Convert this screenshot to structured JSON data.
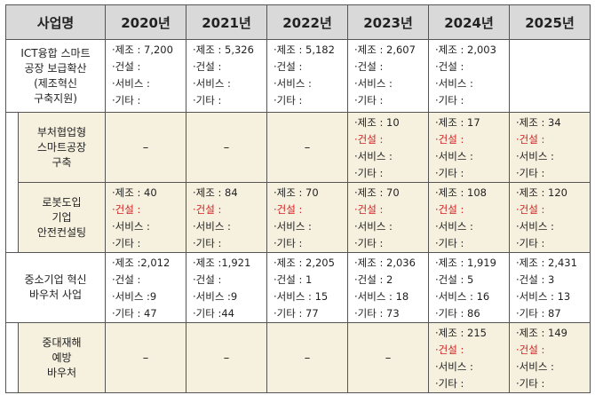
{
  "header": {
    "col_program": "사업명",
    "years": [
      "2020년",
      "2021년",
      "2022년",
      "2023년",
      "2024년",
      "2025년"
    ]
  },
  "rows": [
    {
      "name": [
        "ICT융합 스마트",
        "공장 보급확산",
        "(제조혁신",
        "구축지원)"
      ],
      "cells": [
        [
          {
            "t": "·제조 : 7,200",
            "r": false
          },
          {
            "t": "·건설 :",
            "r": false
          },
          {
            "t": "·서비스 :",
            "r": false
          },
          {
            "t": "·기타 :",
            "r": false
          }
        ],
        [
          {
            "t": "·제조 : 5,326",
            "r": false
          },
          {
            "t": "·건설 :",
            "r": false
          },
          {
            "t": "·서비스 :",
            "r": false
          },
          {
            "t": "·기타 :",
            "r": false
          }
        ],
        [
          {
            "t": "·제조 : 5,182",
            "r": false
          },
          {
            "t": "·건설 :",
            "r": false
          },
          {
            "t": "·서비스 :",
            "r": false
          },
          {
            "t": "·기타 :",
            "r": false
          }
        ],
        [
          {
            "t": "·제조 : 2,607",
            "r": false
          },
          {
            "t": "·건설 :",
            "r": false
          },
          {
            "t": "·서비스 :",
            "r": false
          },
          {
            "t": "·기타 :",
            "r": false
          }
        ],
        [
          {
            "t": "·제조 : 2,003",
            "r": false
          },
          {
            "t": "·건설 :",
            "r": false
          },
          {
            "t": "·서비스 :",
            "r": false
          },
          {
            "t": "·기타 :",
            "r": false
          }
        ],
        []
      ]
    },
    {
      "name": [
        "부처협업형",
        "스마트공장",
        "구축"
      ],
      "cells": [
        "–",
        "–",
        "–",
        [
          {
            "t": "·제조 :  10",
            "r": false
          },
          {
            "t": "·건설 :",
            "r": true
          },
          {
            "t": "·서비스 :",
            "r": false
          },
          {
            "t": "·기타 :",
            "r": false
          }
        ],
        [
          {
            "t": "·제조 :  17",
            "r": false
          },
          {
            "t": "·건설 :",
            "r": true
          },
          {
            "t": "·서비스 :",
            "r": false
          },
          {
            "t": "·기타 :",
            "r": false
          }
        ],
        [
          {
            "t": "·제조 :  34",
            "r": false
          },
          {
            "t": "·건설 :",
            "r": true
          },
          {
            "t": "·서비스 :",
            "r": false
          },
          {
            "t": "·기타 :",
            "r": false
          }
        ]
      ]
    },
    {
      "name": [
        "로봇도입",
        "기업",
        "안전컨설팅"
      ],
      "cells": [
        [
          {
            "t": "·제조 : 40",
            "r": false
          },
          {
            "t": "·건설 :",
            "r": true
          },
          {
            "t": "·서비스 :",
            "r": false
          },
          {
            "t": "·기타 :",
            "r": false
          }
        ],
        [
          {
            "t": "·제조 : 84",
            "r": false
          },
          {
            "t": "·건설 :",
            "r": true
          },
          {
            "t": "·서비스 :",
            "r": false
          },
          {
            "t": "·기타 :",
            "r": false
          }
        ],
        [
          {
            "t": "·제조 : 70",
            "r": false
          },
          {
            "t": "·건설 :",
            "r": true
          },
          {
            "t": "·서비스 :",
            "r": false
          },
          {
            "t": "·기타 :",
            "r": false
          }
        ],
        [
          {
            "t": "·제조 : 70",
            "r": false
          },
          {
            "t": "·건설 :",
            "r": true
          },
          {
            "t": "·서비스 :",
            "r": false
          },
          {
            "t": "·기타 :",
            "r": false
          }
        ],
        [
          {
            "t": "·제조 : 108",
            "r": false
          },
          {
            "t": "·건설 :",
            "r": true
          },
          {
            "t": "·서비스 :",
            "r": false
          },
          {
            "t": "·기타 :",
            "r": false
          }
        ],
        [
          {
            "t": "·제조 : 120",
            "r": false
          },
          {
            "t": "·건설 :",
            "r": true
          },
          {
            "t": "·서비스 :",
            "r": false
          },
          {
            "t": "·기타 :",
            "r": false
          }
        ]
      ]
    },
    {
      "name": [
        "중소기업 혁신",
        "바우처 사업"
      ],
      "cells": [
        [
          {
            "t": "·제조 :2,012",
            "r": false
          },
          {
            "t": "·건설 :",
            "r": false
          },
          {
            "t": "·서비스 :9",
            "r": false
          },
          {
            "t": "·기타 : 47",
            "r": false
          }
        ],
        [
          {
            "t": "·제조 :1,921",
            "r": false
          },
          {
            "t": "·건설 :",
            "r": false
          },
          {
            "t": "·서비스 :9",
            "r": false
          },
          {
            "t": "·기타 :44",
            "r": false
          }
        ],
        [
          {
            "t": "·제조 : 2,205",
            "r": false
          },
          {
            "t": "·건설 : 1",
            "r": false
          },
          {
            "t": "·서비스 : 15",
            "r": false
          },
          {
            "t": "·기타 : 77",
            "r": false
          }
        ],
        [
          {
            "t": "·제조 : 2,036",
            "r": false
          },
          {
            "t": "·건설 : 2",
            "r": false
          },
          {
            "t": "·서비스 : 18",
            "r": false
          },
          {
            "t": "·기타 : 73",
            "r": false
          }
        ],
        [
          {
            "t": "·제조 : 1,919",
            "r": false
          },
          {
            "t": "·건설 : 5",
            "r": false
          },
          {
            "t": "·서비스 :  16",
            "r": false
          },
          {
            "t": "·기타 : 86",
            "r": false
          }
        ],
        [
          {
            "t": "·제조 : 2,431",
            "r": false
          },
          {
            "t": "·건설 : 3",
            "r": false
          },
          {
            "t": "·서비스 : 13",
            "r": false
          },
          {
            "t": "·기타 : 87",
            "r": false
          }
        ]
      ]
    },
    {
      "name": [
        "중대재해",
        "예방",
        "바우처"
      ],
      "cells": [
        "–",
        "–",
        "–",
        "–",
        [
          {
            "t": "·제조 : 215",
            "r": false
          },
          {
            "t": "·건설 :",
            "r": true
          },
          {
            "t": "·서비스 :",
            "r": false
          },
          {
            "t": "·기타 :",
            "r": false
          }
        ],
        [
          {
            "t": "·제조 : 149",
            "r": false
          },
          {
            "t": "·건설 :",
            "r": true
          },
          {
            "t": "·서비스 :",
            "r": false
          },
          {
            "t": "·기타 :",
            "r": false
          }
        ]
      ]
    }
  ],
  "colors": {
    "header_bg": "#d9d9d9",
    "sub_bg": "#f6f0df",
    "red": "#d02020"
  }
}
